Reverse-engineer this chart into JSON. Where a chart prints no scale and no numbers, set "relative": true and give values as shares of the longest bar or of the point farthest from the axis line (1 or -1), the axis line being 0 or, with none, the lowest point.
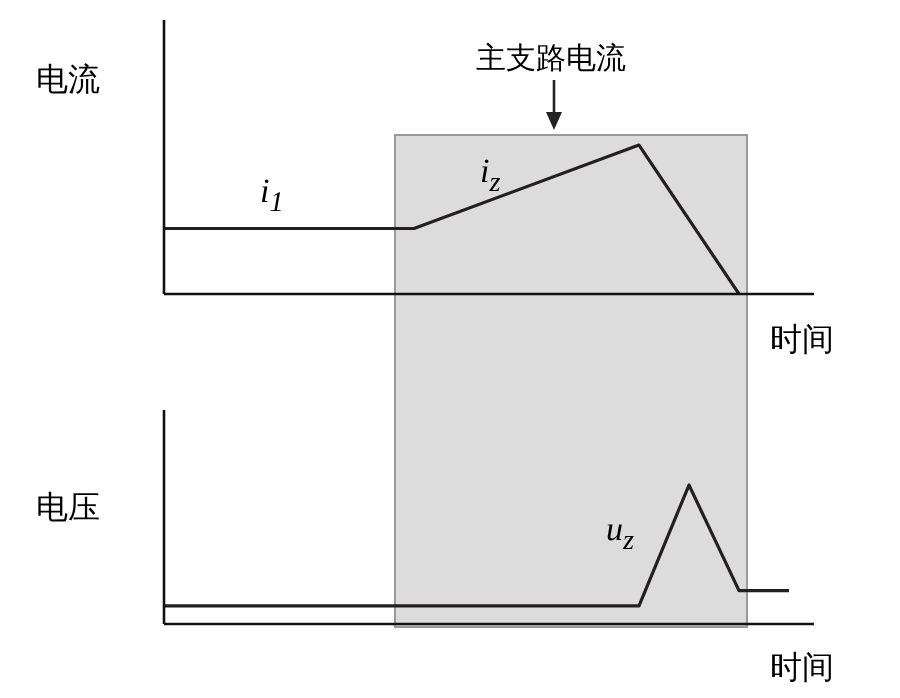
{
  "chart_data": [
    {
      "type": "line",
      "ylabel": "电流",
      "xlabel": "时间",
      "relative": true,
      "categories": [
        null,
        null,
        null,
        null,
        null,
        null,
        null,
        null,
        null,
        null,
        null,
        null,
        null,
        null,
        null,
        null,
        null,
        null,
        null,
        null,
        null,
        null,
        null,
        null,
        null,
        null,
        null
      ],
      "series": [
        {
          "color": "#231f20",
          "values": [
            0.44,
            null,
            null,
            null,
            null,
            null,
            null,
            null,
            null,
            null,
            0.44,
            null,
            null,
            null,
            null,
            null,
            null,
            null,
            null,
            1,
            null,
            null,
            null,
            0,
            null,
            null,
            null
          ]
        }
      ],
      "annotations": [
        "主支路电流",
        "i$_{1}$",
        "i$_{z}$"
      ]
    },
    {
      "type": "line",
      "ylabel": "电压",
      "xlabel": "时间",
      "relative": true,
      "categories": [
        null,
        null,
        null,
        null,
        null,
        null,
        null,
        null,
        null,
        null,
        null,
        null,
        null,
        null,
        null,
        null,
        null,
        null,
        null,
        null,
        null,
        null,
        null,
        null,
        null,
        null,
        null
      ],
      "series": [
        {
          "color": "#231f20",
          "values": [
            0.13,
            null,
            null,
            null,
            null,
            null,
            null,
            null,
            null,
            null,
            null,
            null,
            null,
            null,
            null,
            null,
            null,
            null,
            null,
            0.13,
            null,
            1,
            null,
            0.24,
            null,
            0.24,
            null
          ]
        }
      ],
      "annotations": [
        "u$_{z}$"
      ]
    }
  ]
}
